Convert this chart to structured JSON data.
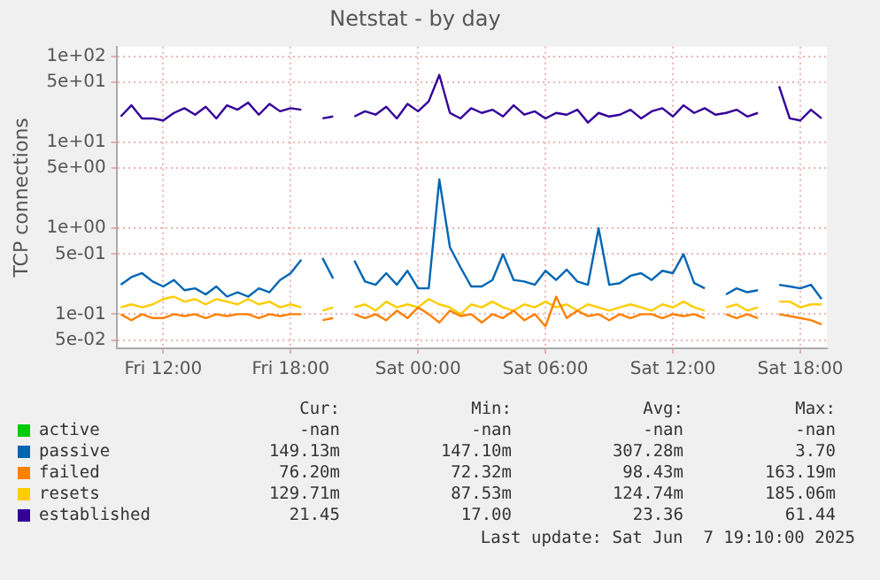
{
  "chart_data": {
    "type": "line",
    "title": "Netstat - by day",
    "ylabel": "TCP connections",
    "log": true,
    "grid": true,
    "marker": "none",
    "line_style": "solid",
    "legend": "bottom",
    "xlim": [
      "2025-06-06T09:48",
      "2025-06-07T19:15"
    ],
    "xticks": [
      {
        "value": "2025-06-06T12:00",
        "label": "Fri 12:00"
      },
      {
        "value": "2025-06-06T18:00",
        "label": "Fri 18:00"
      },
      {
        "value": "2025-06-07T00:00",
        "label": "Sat 00:00"
      },
      {
        "value": "2025-06-07T06:00",
        "label": "Sat 06:00"
      },
      {
        "value": "2025-06-07T12:00",
        "label": "Sat 12:00"
      },
      {
        "value": "2025-06-07T18:00",
        "label": "Sat 18:00"
      }
    ],
    "ylim": [
      0.04,
      130
    ],
    "yticks": [
      {
        "value": 0.05,
        "label": "5e-02"
      },
      {
        "value": 0.1,
        "label": "1e-01"
      },
      {
        "value": 0.5,
        "label": "5e-01"
      },
      {
        "value": 1,
        "label": "1e+00"
      },
      {
        "value": 5,
        "label": "5e+00"
      },
      {
        "value": 10,
        "label": "1e+01"
      },
      {
        "value": 50,
        "label": "5e+01"
      },
      {
        "value": 100,
        "label": "1e+02"
      }
    ],
    "x": [
      "2025-06-06T10:00",
      "2025-06-06T10:30",
      "2025-06-06T11:00",
      "2025-06-06T11:30",
      "2025-06-06T12:00",
      "2025-06-06T12:30",
      "2025-06-06T13:00",
      "2025-06-06T13:30",
      "2025-06-06T14:00",
      "2025-06-06T14:30",
      "2025-06-06T15:00",
      "2025-06-06T15:30",
      "2025-06-06T16:00",
      "2025-06-06T16:30",
      "2025-06-06T17:00",
      "2025-06-06T17:30",
      "2025-06-06T18:00",
      "2025-06-06T18:30",
      "2025-06-06T19:00",
      "2025-06-06T19:30",
      "2025-06-06T20:00",
      "2025-06-06T20:30",
      "2025-06-06T21:00",
      "2025-06-06T21:30",
      "2025-06-06T22:00",
      "2025-06-06T22:30",
      "2025-06-06T23:00",
      "2025-06-06T23:30",
      "2025-06-07T00:00",
      "2025-06-07T00:30",
      "2025-06-07T01:00",
      "2025-06-07T01:30",
      "2025-06-07T02:00",
      "2025-06-07T02:30",
      "2025-06-07T03:00",
      "2025-06-07T03:30",
      "2025-06-07T04:00",
      "2025-06-07T04:30",
      "2025-06-07T05:00",
      "2025-06-07T05:30",
      "2025-06-07T06:00",
      "2025-06-07T06:30",
      "2025-06-07T07:00",
      "2025-06-07T07:30",
      "2025-06-07T08:00",
      "2025-06-07T08:30",
      "2025-06-07T09:00",
      "2025-06-07T09:30",
      "2025-06-07T10:00",
      "2025-06-07T10:30",
      "2025-06-07T11:00",
      "2025-06-07T11:30",
      "2025-06-07T12:00",
      "2025-06-07T12:30",
      "2025-06-07T13:00",
      "2025-06-07T13:30",
      "2025-06-07T14:00",
      "2025-06-07T14:30",
      "2025-06-07T15:00",
      "2025-06-07T15:30",
      "2025-06-07T16:00",
      "2025-06-07T16:30",
      "2025-06-07T17:00",
      "2025-06-07T17:30",
      "2025-06-07T18:00",
      "2025-06-07T18:30",
      "2025-06-07T19:00"
    ],
    "series": [
      {
        "name": "active",
        "color": "#00cc00",
        "values": [
          null,
          null,
          null,
          null,
          null,
          null,
          null,
          null,
          null,
          null,
          null,
          null,
          null,
          null,
          null,
          null,
          null,
          null,
          null,
          null,
          null,
          null,
          null,
          null,
          null,
          null,
          null,
          null,
          null,
          null,
          null,
          null,
          null,
          null,
          null,
          null,
          null,
          null,
          null,
          null,
          null,
          null,
          null,
          null,
          null,
          null,
          null,
          null,
          null,
          null,
          null,
          null,
          null,
          null,
          null,
          null,
          null,
          null,
          null,
          null,
          null,
          null,
          null,
          null,
          null,
          null,
          null
        ]
      },
      {
        "name": "passive",
        "color": "#0066b3",
        "values": [
          0.22,
          0.27,
          0.3,
          0.24,
          0.21,
          0.25,
          0.19,
          0.2,
          0.17,
          0.21,
          0.16,
          0.18,
          0.16,
          0.2,
          0.18,
          0.25,
          0.3,
          0.43,
          null,
          0.45,
          0.26,
          null,
          0.42,
          0.24,
          0.22,
          0.3,
          0.22,
          0.32,
          0.2,
          0.2,
          3.7,
          0.6,
          0.35,
          0.21,
          0.21,
          0.25,
          0.5,
          0.25,
          0.24,
          0.22,
          0.32,
          0.25,
          0.33,
          0.24,
          0.22,
          1.0,
          0.22,
          0.23,
          0.28,
          0.3,
          0.25,
          0.32,
          0.3,
          0.5,
          0.23,
          0.2,
          null,
          0.17,
          0.2,
          0.18,
          0.19,
          null,
          0.22,
          0.21,
          0.2,
          0.22,
          0.15
        ]
      },
      {
        "name": "failed",
        "color": "#ff8000",
        "values": [
          0.1,
          0.085,
          0.1,
          0.09,
          0.09,
          0.1,
          0.095,
          0.1,
          0.09,
          0.1,
          0.095,
          0.1,
          0.1,
          0.09,
          0.1,
          0.095,
          0.1,
          0.1,
          null,
          0.085,
          0.09,
          null,
          0.1,
          0.09,
          0.1,
          0.085,
          0.11,
          0.09,
          0.12,
          0.1,
          0.08,
          0.11,
          0.095,
          0.1,
          0.08,
          0.1,
          0.09,
          0.11,
          0.085,
          0.1,
          0.072,
          0.16,
          0.09,
          0.11,
          0.095,
          0.1,
          0.085,
          0.1,
          0.09,
          0.1,
          0.1,
          0.09,
          0.1,
          0.095,
          0.1,
          0.09,
          null,
          0.1,
          0.09,
          0.1,
          0.09,
          null,
          0.1,
          0.095,
          0.09,
          0.085,
          0.076
        ]
      },
      {
        "name": "resets",
        "color": "#ffcc00",
        "values": [
          0.12,
          0.13,
          0.12,
          0.13,
          0.15,
          0.16,
          0.14,
          0.15,
          0.13,
          0.15,
          0.14,
          0.13,
          0.15,
          0.13,
          0.14,
          0.12,
          0.13,
          0.12,
          null,
          0.11,
          0.12,
          null,
          0.12,
          0.13,
          0.11,
          0.14,
          0.12,
          0.13,
          0.12,
          0.15,
          0.13,
          0.12,
          0.1,
          0.13,
          0.12,
          0.14,
          0.12,
          0.11,
          0.13,
          0.12,
          0.14,
          0.12,
          0.13,
          0.11,
          0.13,
          0.12,
          0.11,
          0.12,
          0.13,
          0.12,
          0.11,
          0.13,
          0.12,
          0.14,
          0.12,
          0.11,
          null,
          0.12,
          0.13,
          0.11,
          0.12,
          null,
          0.14,
          0.14,
          0.12,
          0.13,
          0.13
        ]
      },
      {
        "name": "established",
        "color": "#330099",
        "values": [
          20,
          27,
          19,
          19,
          18,
          22,
          25,
          21,
          26,
          19,
          27,
          24,
          29,
          21,
          28,
          23,
          25,
          24,
          null,
          19,
          20,
          null,
          20,
          23,
          21,
          26,
          19,
          28,
          23,
          30,
          61,
          22,
          19,
          25,
          22,
          24,
          20,
          27,
          21,
          23,
          19,
          22,
          21,
          24,
          17,
          22,
          20,
          21,
          24,
          19,
          23,
          25,
          20,
          27,
          22,
          25,
          21,
          22,
          24,
          20,
          22,
          null,
          45,
          19,
          18,
          24,
          19
        ]
      }
    ],
    "annotations": [
      "Cur:",
      "Min:",
      "Avg:",
      "Max:",
      "-nan",
      "-nan",
      "-nan",
      "-nan",
      "149.13m",
      "147.10m",
      "307.28m",
      "3.70",
      "76.20m",
      "72.32m",
      "98.43m",
      "163.19m",
      "129.71m",
      "87.53m",
      "124.74m",
      "185.06m",
      "21.45",
      "17.00",
      "23.36",
      "61.44",
      "Last update: Sat Jun  7 19:10:00 2025"
    ]
  }
}
